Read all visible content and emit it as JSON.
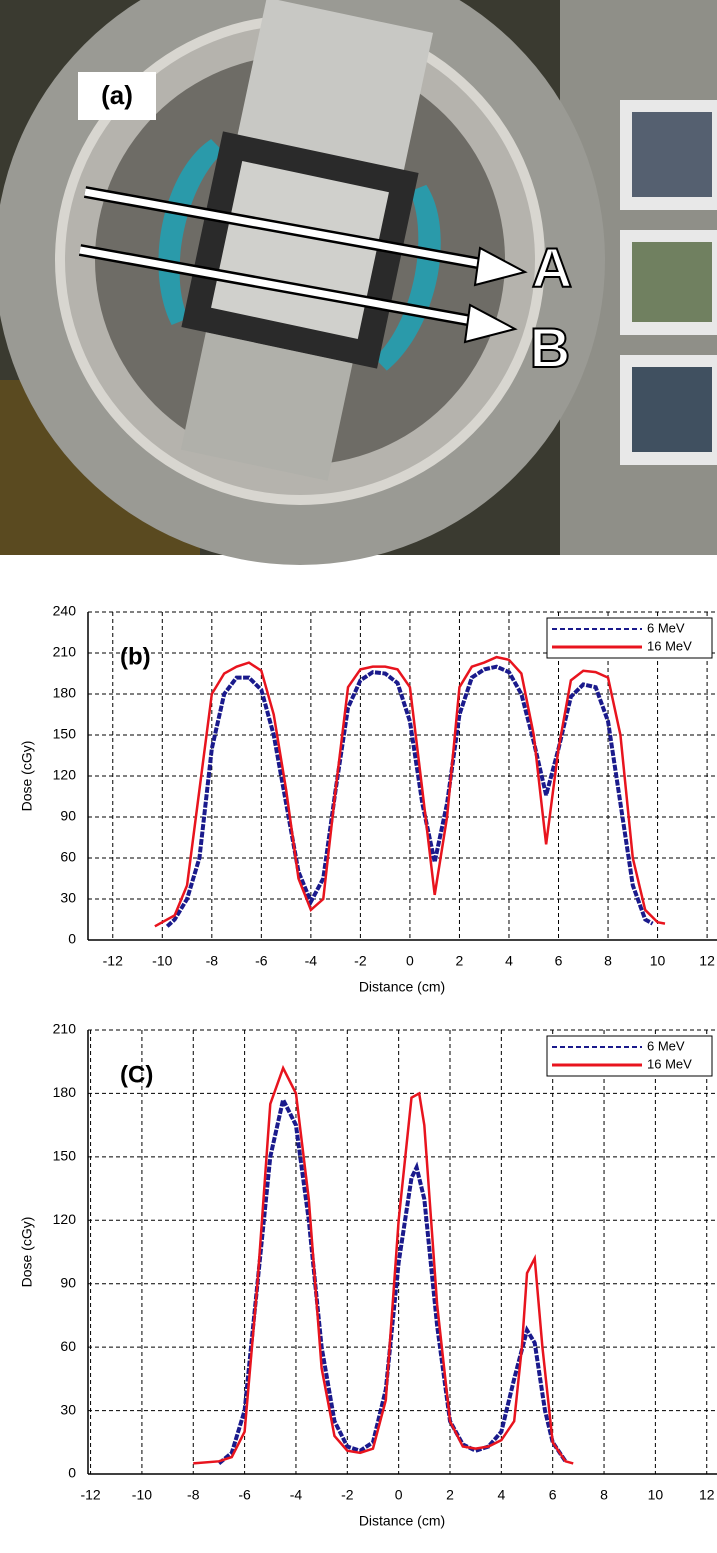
{
  "photo": {
    "label": "(a)",
    "arrow_labels": [
      "A",
      "B"
    ]
  },
  "chart_data": [
    {
      "type": "line",
      "label": "(b)",
      "xlabel": "Distance (cm)",
      "ylabel": "Dose (cGy)",
      "xlim": [
        -13,
        12.4
      ],
      "xticks": [
        -12,
        -10,
        -8,
        -6,
        -4,
        -2,
        0,
        2,
        4,
        6,
        8,
        10,
        12
      ],
      "ylim": [
        0,
        240
      ],
      "yticks": [
        0,
        30,
        60,
        90,
        120,
        150,
        180,
        210,
        240
      ],
      "grid": true,
      "legend": "upper right",
      "series": [
        {
          "name": "6 MeV",
          "color": "#1a1a8c",
          "linestyle": "dashed",
          "x": [
            -9.8,
            -9.5,
            -9,
            -8.5,
            -8,
            -7.5,
            -7,
            -6.5,
            -6,
            -5.5,
            -5,
            -4.5,
            -4,
            -3.5,
            -3,
            -2.5,
            -2,
            -1.5,
            -1,
            -0.5,
            0,
            0.5,
            1,
            1.5,
            2,
            2.5,
            3,
            3.5,
            4,
            4.5,
            5,
            5.5,
            6,
            6.5,
            7,
            7.5,
            8,
            8.5,
            9,
            9.5,
            9.8
          ],
          "values": [
            10,
            15,
            30,
            60,
            140,
            180,
            192,
            192,
            183,
            150,
            100,
            50,
            28,
            45,
            110,
            170,
            190,
            196,
            195,
            188,
            160,
            100,
            57,
            100,
            165,
            192,
            198,
            200,
            196,
            180,
            145,
            106,
            140,
            178,
            187,
            185,
            160,
            100,
            40,
            15,
            12
          ]
        },
        {
          "name": "16 MeV",
          "color": "#e8141e",
          "linestyle": "solid",
          "x": [
            -10.3,
            -9.5,
            -9,
            -8.5,
            -8,
            -7.5,
            -7,
            -6.5,
            -6,
            -5.5,
            -5,
            -4.5,
            -4,
            -3.5,
            -3,
            -2.5,
            -2,
            -1.5,
            -1,
            -0.5,
            0,
            0.5,
            1,
            1.5,
            2,
            2.5,
            3,
            3.5,
            4,
            4.5,
            5,
            5.5,
            6,
            6.5,
            7,
            7.5,
            8,
            8.5,
            9,
            9.5,
            10,
            10.3
          ],
          "values": [
            10,
            18,
            40,
            110,
            180,
            195,
            200,
            203,
            197,
            165,
            110,
            45,
            22,
            30,
            110,
            185,
            198,
            200,
            200,
            198,
            185,
            110,
            33,
            90,
            185,
            200,
            203,
            207,
            205,
            195,
            150,
            70,
            140,
            190,
            197,
            196,
            192,
            150,
            60,
            22,
            13,
            12
          ]
        }
      ]
    },
    {
      "type": "line",
      "label": "(C)",
      "xlabel": "Distance (cm)",
      "ylabel": "Dose (cGy)",
      "xlim": [
        -12.1,
        12.4
      ],
      "xticks": [
        -12,
        -10,
        -8,
        -6,
        -4,
        -2,
        0,
        2,
        4,
        6,
        8,
        10,
        12
      ],
      "ylim": [
        0,
        210
      ],
      "yticks": [
        0,
        30,
        60,
        90,
        120,
        150,
        180,
        210
      ],
      "grid": true,
      "legend": "upper right",
      "series": [
        {
          "name": "6 MeV",
          "color": "#1a1a8c",
          "linestyle": "dashed",
          "x": [
            -7,
            -6.5,
            -6,
            -5.5,
            -5,
            -4.5,
            -4,
            -3.5,
            -3,
            -2.5,
            -2,
            -1.5,
            -1,
            -0.5,
            0,
            0.5,
            0.7,
            1,
            1.5,
            2,
            2.5,
            3,
            3.5,
            4,
            4.5,
            5,
            5.3,
            5.7,
            6,
            6.5
          ],
          "values": [
            5,
            10,
            30,
            90,
            150,
            177,
            165,
            120,
            60,
            25,
            13,
            11,
            15,
            40,
            100,
            140,
            145,
            130,
            70,
            25,
            14,
            11,
            13,
            20,
            45,
            68,
            62,
            30,
            15,
            6
          ]
        },
        {
          "name": "16 MeV",
          "color": "#e8141e",
          "linestyle": "solid",
          "x": [
            -8,
            -7,
            -6.5,
            -6,
            -5.5,
            -5,
            -4.5,
            -4,
            -3.5,
            -3,
            -2.5,
            -2,
            -1.5,
            -1,
            -0.5,
            0,
            0.5,
            0.8,
            1,
            1.5,
            2,
            2.5,
            3,
            3.5,
            4,
            4.5,
            4.8,
            5,
            5.3,
            5.6,
            6,
            6.5,
            6.8
          ],
          "values": [
            5,
            6,
            8,
            20,
            90,
            175,
            192,
            180,
            130,
            50,
            18,
            11,
            10,
            12,
            35,
            120,
            178,
            180,
            165,
            80,
            25,
            13,
            12,
            13,
            16,
            25,
            60,
            95,
            102,
            60,
            15,
            6,
            5
          ]
        }
      ]
    }
  ]
}
